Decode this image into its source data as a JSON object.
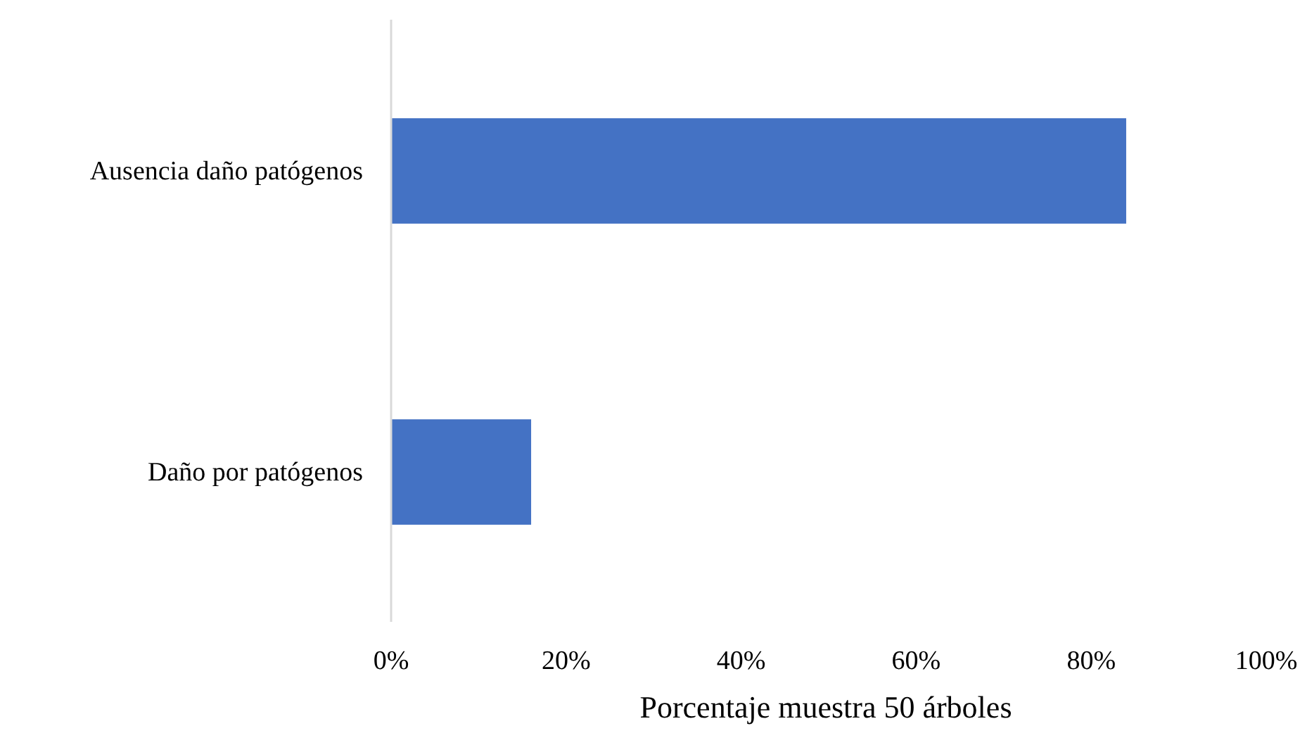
{
  "chart_data": {
    "type": "bar",
    "orientation": "horizontal",
    "xlabel": "Porcentaje muestra 50 árboles",
    "categories": [
      "Ausencia daño patógenos",
      "Daño por patógenos"
    ],
    "values": [
      84,
      16
    ],
    "color": "#4472c4",
    "xlim": [
      0,
      100
    ],
    "xticks": [
      {
        "value": 0,
        "label": "0%"
      },
      {
        "value": 20,
        "label": "20%"
      },
      {
        "value": 40,
        "label": "40%"
      },
      {
        "value": 60,
        "label": "60%"
      },
      {
        "value": 80,
        "label": "80%"
      },
      {
        "value": 100,
        "label": "100%"
      }
    ],
    "grid": false
  }
}
